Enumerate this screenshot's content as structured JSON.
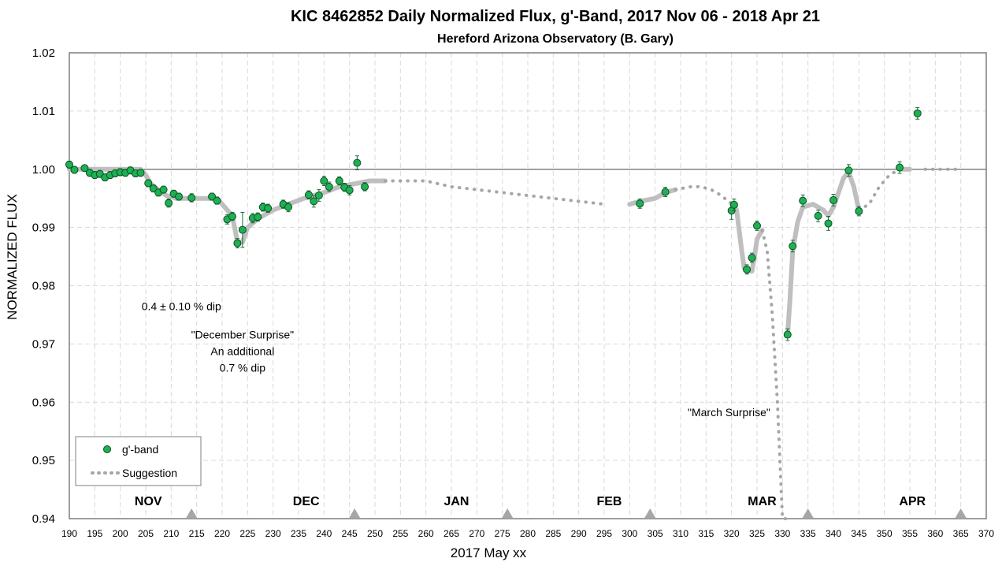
{
  "chart_data": {
    "type": "scatter",
    "title": "KIC 8462852 Daily  Normalized Flux, g'-Band, 2017 Nov 06 - 2018 Apr 21",
    "subtitle": "Hereford Arizona Observatory (B. Gary)",
    "xlabel": "2017 May xx",
    "ylabel": "NORMALIZED FLUX",
    "xlim": [
      190,
      370
    ],
    "ylim": [
      0.94,
      1.02
    ],
    "x_ticks": [
      190,
      195,
      200,
      205,
      210,
      215,
      220,
      225,
      230,
      235,
      240,
      245,
      250,
      255,
      260,
      265,
      270,
      275,
      280,
      285,
      290,
      295,
      300,
      305,
      310,
      315,
      320,
      325,
      330,
      335,
      340,
      345,
      350,
      355,
      360,
      365,
      370
    ],
    "y_ticks": [
      0.94,
      0.95,
      0.96,
      0.97,
      0.98,
      0.99,
      1.0,
      1.01,
      1.02
    ],
    "y_tick_labels": [
      "0.94",
      "0.95",
      "0.96",
      "0.97",
      "0.98",
      "0.99",
      "1.00",
      "1.01",
      "1.02"
    ],
    "grid": true,
    "reference_line": 1.0,
    "legend": {
      "position": "bottom-left",
      "entries": [
        {
          "label": "g'-band",
          "marker": "circle",
          "color": "#1db154"
        },
        {
          "label": "Suggestion",
          "marker": "dotted-line",
          "color": "#a6a6a6"
        }
      ]
    },
    "series": [
      {
        "name": "g'-band",
        "color": "#1db154",
        "x": [
          190,
          191,
          193,
          194,
          195,
          196,
          197,
          198,
          199,
          200,
          201,
          202,
          203,
          204,
          205.5,
          206.5,
          207.5,
          208.5,
          209.5,
          210.5,
          211.5,
          214,
          218,
          219,
          221,
          222,
          223,
          224,
          226,
          227,
          228,
          229,
          232,
          233,
          237,
          238,
          239,
          240,
          241,
          243,
          244,
          245,
          246.5,
          248,
          302,
          307,
          320,
          320.5,
          323,
          324,
          325,
          331,
          332,
          334,
          337,
          339,
          340,
          343,
          345,
          353,
          356.5
        ],
        "y": [
          1.0008,
          0.9999,
          1.0002,
          0.9994,
          0.999,
          0.9992,
          0.9986,
          0.999,
          0.9993,
          0.9995,
          0.9994,
          0.9998,
          0.9993,
          0.9994,
          0.9976,
          0.9967,
          0.996,
          0.9965,
          0.9942,
          0.9958,
          0.9953,
          0.9951,
          0.9953,
          0.9946,
          0.9914,
          0.9919,
          0.9873,
          0.9896,
          0.9916,
          0.9918,
          0.9935,
          0.9933,
          0.994,
          0.9935,
          0.9956,
          0.9945,
          0.9955,
          0.998,
          0.997,
          0.998,
          0.9969,
          0.9964,
          1.0011,
          0.997,
          0.9941,
          0.9961,
          0.9929,
          0.9939,
          0.9828,
          0.9848,
          0.9903,
          0.9716,
          0.9868,
          0.9946,
          0.992,
          0.9907,
          0.9947,
          0.9998,
          0.9928,
          1.0003,
          1.0096
        ],
        "err": [
          0.0006,
          0.0006,
          0.0005,
          0.0006,
          0.0006,
          0.0006,
          0.0006,
          0.0006,
          0.0006,
          0.0006,
          0.0006,
          0.0006,
          0.0006,
          0.0006,
          0.0006,
          0.0006,
          0.0006,
          0.0006,
          0.0007,
          0.0006,
          0.0006,
          0.0007,
          0.0006,
          0.0006,
          0.0008,
          0.0007,
          0.0008,
          0.003,
          0.0008,
          0.0007,
          0.0007,
          0.0007,
          0.0007,
          0.0008,
          0.0007,
          0.001,
          0.001,
          0.0008,
          0.0008,
          0.0007,
          0.0007,
          0.0008,
          0.0012,
          0.0007,
          0.0008,
          0.0008,
          0.0015,
          0.001,
          0.0008,
          0.0008,
          0.0008,
          0.001,
          0.001,
          0.001,
          0.001,
          0.0012,
          0.001,
          0.001,
          0.0008,
          0.001,
          0.001
        ]
      },
      {
        "name": "Suggestion",
        "style": "solid-thick",
        "color": "#bfbfbf",
        "x": [
          190,
          204,
          205,
          206,
          209,
          211,
          214,
          219,
          221,
          222,
          223,
          224,
          225,
          227,
          230,
          233,
          236,
          240,
          243,
          246,
          249,
          252
        ],
        "y": [
          1.0,
          1.0,
          0.999,
          0.9975,
          0.9955,
          0.995,
          0.995,
          0.995,
          0.993,
          0.992,
          0.9875,
          0.9875,
          0.99,
          0.9915,
          0.993,
          0.994,
          0.995,
          0.996,
          0.997,
          0.9975,
          0.998,
          0.998
        ]
      },
      {
        "name": "Suggestion",
        "style": "dotted",
        "color": "#a6a6a6",
        "x": [
          252,
          255,
          260,
          265,
          270,
          275,
          280,
          285,
          290,
          295
        ],
        "y": [
          0.998,
          0.998,
          0.998,
          0.997,
          0.9965,
          0.996,
          0.9955,
          0.995,
          0.9945,
          0.994
        ]
      },
      {
        "name": "Suggestion",
        "style": "solid-thick",
        "color": "#bfbfbf",
        "x": [
          300,
          302,
          305,
          307,
          309
        ],
        "y": [
          0.994,
          0.9945,
          0.995,
          0.996,
          0.9965
        ]
      },
      {
        "name": "Suggestion",
        "style": "dotted",
        "color": "#a6a6a6",
        "x": [
          309,
          312,
          314,
          316,
          318,
          320
        ],
        "y": [
          0.9965,
          0.997,
          0.997,
          0.9965,
          0.9955,
          0.994
        ]
      },
      {
        "name": "Suggestion",
        "style": "solid-thick",
        "color": "#bfbfbf",
        "x": [
          320,
          321,
          322,
          322.5,
          323,
          324,
          324.5,
          325,
          326
        ],
        "y": [
          0.994,
          0.993,
          0.986,
          0.983,
          0.9825,
          0.9825,
          0.985,
          0.988,
          0.9895
        ]
      },
      {
        "name": "Suggestion",
        "style": "dotted",
        "color": "#a6a6a6",
        "x": [
          326,
          327,
          328,
          329,
          329.5,
          330,
          331
        ],
        "y": [
          0.9895,
          0.986,
          0.975,
          0.96,
          0.95,
          0.94,
          0.94
        ]
      },
      {
        "name": "Suggestion",
        "style": "solid-thick",
        "color": "#bfbfbf",
        "x": [
          331,
          331.5,
          332,
          333,
          334,
          336,
          338,
          339,
          340,
          341,
          342,
          343,
          344,
          345
        ],
        "y": [
          0.9715,
          0.978,
          0.986,
          0.991,
          0.9935,
          0.994,
          0.993,
          0.992,
          0.9935,
          0.996,
          0.9985,
          0.9995,
          0.997,
          0.993
        ]
      },
      {
        "name": "Suggestion",
        "style": "dotted",
        "color": "#a6a6a6",
        "x": [
          345,
          347,
          349,
          351,
          353
        ],
        "y": [
          0.993,
          0.994,
          0.997,
          0.999,
          1.0
        ]
      },
      {
        "name": "Suggestion",
        "style": "solid-thick",
        "color": "#bfbfbf",
        "x": [
          353,
          355
        ],
        "y": [
          1.0,
          1.0
        ]
      },
      {
        "name": "Suggestion",
        "style": "dotted",
        "color": "#a6a6a6",
        "x": [
          358,
          360,
          362,
          364,
          365
        ],
        "y": [
          1.0,
          1.0,
          1.0,
          1.0,
          1.0
        ]
      }
    ],
    "month_labels": [
      {
        "text": "NOV",
        "x": 205.5
      },
      {
        "text": "DEC",
        "x": 236.5
      },
      {
        "text": "JAN",
        "x": 266
      },
      {
        "text": "FEB",
        "x": 296
      },
      {
        "text": "MAR",
        "x": 326
      },
      {
        "text": "APR",
        "x": 355.5
      }
    ],
    "month_markers": [
      214,
      246,
      276,
      304,
      335,
      365
    ],
    "annotations": [
      {
        "lines": [
          "0.4 ± 0.10 % dip"
        ],
        "x": 212,
        "y": 0.9765
      },
      {
        "lines": [
          "\"December Surprise\"",
          "An additional",
          "0.7 % dip"
        ],
        "x": 224,
        "y": 0.9716
      },
      {
        "lines": [
          "\"March Surprise\""
        ],
        "x": 319.5,
        "y": 0.9583
      }
    ]
  }
}
